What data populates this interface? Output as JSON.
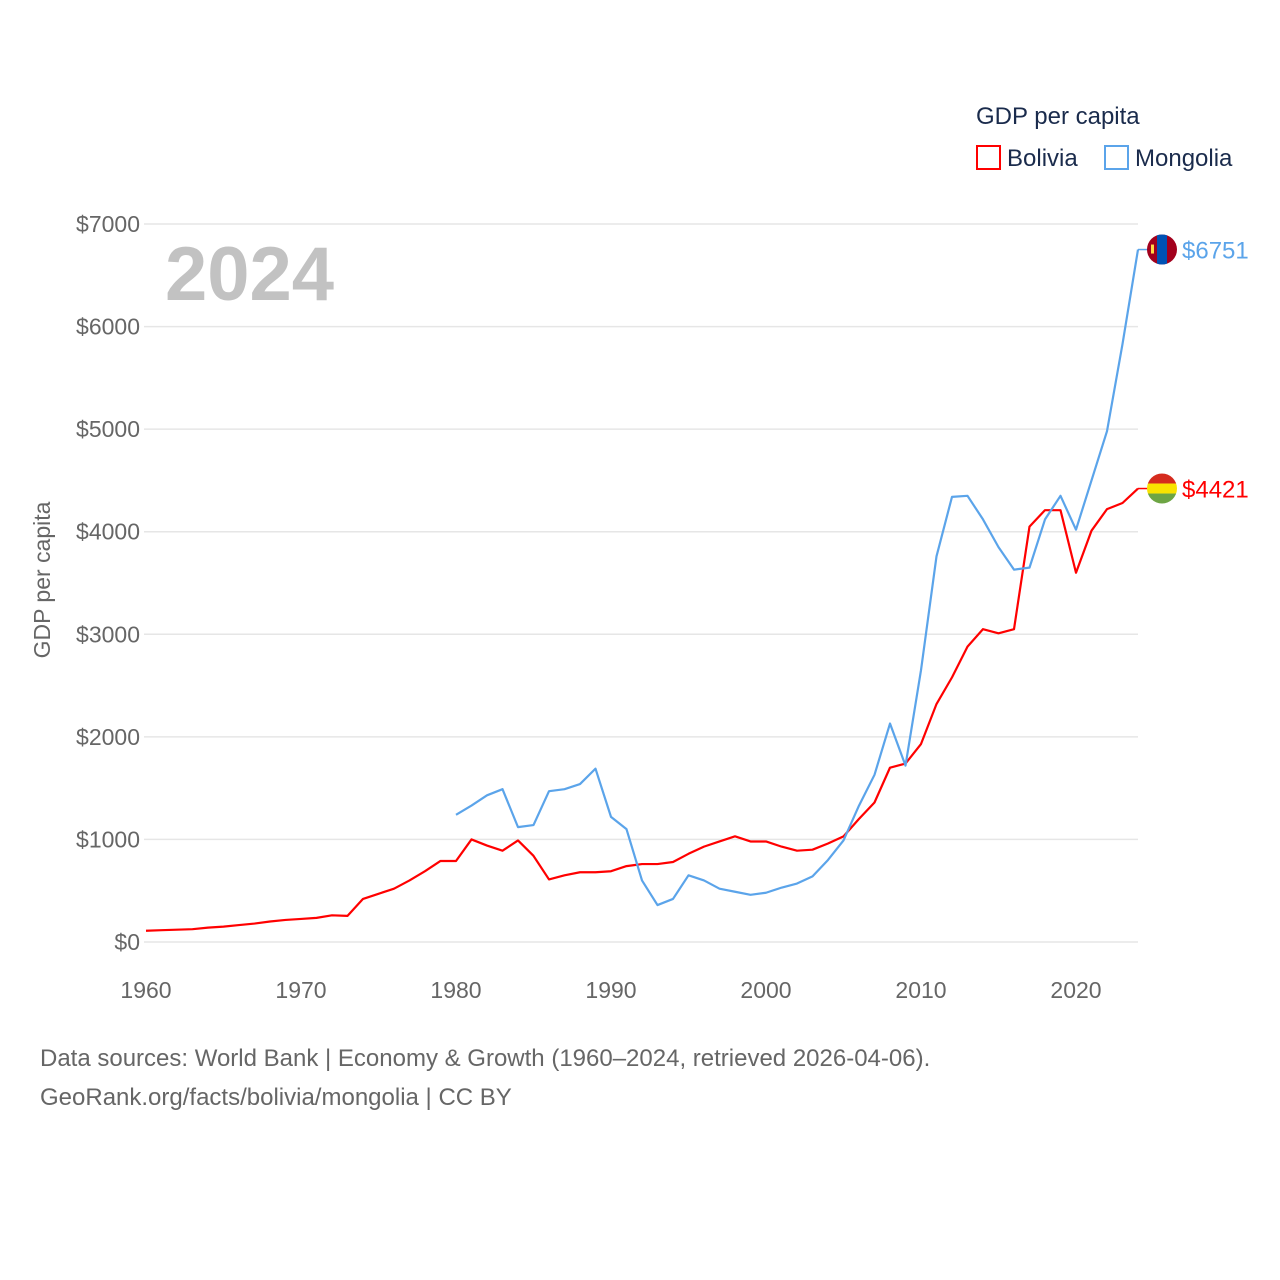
{
  "chart_data": {
    "type": "line",
    "year_label": "2024",
    "ylabel": "GDP per capita",
    "legend_title": "GDP per capita",
    "legend_position": "top-right",
    "xlim": [
      1960,
      2024
    ],
    "ylim": [
      0,
      7000
    ],
    "x_ticks": [
      "1960",
      "1970",
      "1980",
      "1990",
      "2000",
      "2010",
      "2020"
    ],
    "x_tick_values": [
      1960,
      1970,
      1980,
      1990,
      2000,
      2010,
      2020
    ],
    "y_ticks": [
      "$0",
      "$1000",
      "$2000",
      "$3000",
      "$4000",
      "$5000",
      "$6000",
      "$7000"
    ],
    "y_tick_values": [
      0,
      1000,
      2000,
      3000,
      4000,
      5000,
      6000,
      7000
    ],
    "grid": true,
    "series": [
      {
        "name": "Bolivia",
        "color": "#ff0000",
        "end_label": "$4421",
        "flag": "bolivia-flag",
        "start_year": 1960,
        "values": [
          110,
          115,
          120,
          125,
          140,
          150,
          165,
          180,
          200,
          215,
          225,
          235,
          260,
          255,
          420,
          470,
          520,
          600,
          690,
          790,
          790,
          1000,
          940,
          890,
          990,
          840,
          610,
          650,
          680,
          680,
          690,
          740,
          760,
          760,
          780,
          860,
          930,
          980,
          1030,
          980,
          980,
          930,
          890,
          900,
          960,
          1030,
          1200,
          1360,
          1700,
          1740,
          1930,
          2320,
          2580,
          2880,
          3050,
          3010,
          3050,
          4050,
          4210,
          4210,
          3600,
          4010,
          4220,
          4280,
          4421
        ]
      },
      {
        "name": "Mongolia",
        "color": "#5ba4ea",
        "end_label": "$6751",
        "flag": "mongolia-flag",
        "start_year": 1980,
        "values": [
          1240,
          1330,
          1430,
          1490,
          1120,
          1140,
          1470,
          1490,
          1540,
          1690,
          1220,
          1100,
          600,
          360,
          420,
          650,
          600,
          520,
          490,
          460,
          480,
          530,
          570,
          640,
          800,
          990,
          1330,
          1630,
          2130,
          1720,
          2650,
          3760,
          4340,
          4350,
          4120,
          3850,
          3630,
          3650,
          4120,
          4350,
          4020,
          4500,
          4980,
          5830,
          6751
        ]
      }
    ]
  },
  "footer": {
    "line1": "Data sources: World Bank | Economy & Growth (1960–2024, retrieved 2026-04-06).",
    "line2": "GeoRank.org/facts/bolivia/mongolia | CC BY"
  }
}
